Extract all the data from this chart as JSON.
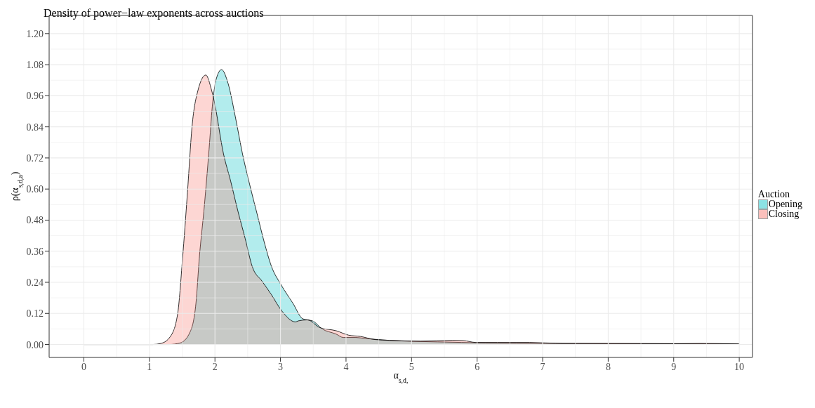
{
  "chart_data": {
    "type": "area",
    "title": "Density of power−law exponents across auctions",
    "xlabel": "α$_{s,d,}$",
    "ylabel": "ρ(α$_{s,d,a}$)",
    "legend_title": "Auction",
    "legend": "right",
    "grid": true,
    "xlim": [
      -0.53,
      10.2
    ],
    "xticks": [
      0,
      1,
      2,
      3,
      4,
      5,
      6,
      7,
      8,
      9,
      10
    ],
    "ylim": [
      -0.05,
      1.27
    ],
    "yticks": [
      {
        "value": 0,
        "label": "0.00"
      },
      {
        "value": 0.12,
        "label": "0.12"
      },
      {
        "value": 0.24,
        "label": "0.24"
      },
      {
        "value": 0.36,
        "label": "0.36"
      },
      {
        "value": 0.48,
        "label": "0.48"
      },
      {
        "value": 0.6,
        "label": "0.60"
      },
      {
        "value": 0.72,
        "label": "0.72"
      },
      {
        "value": 0.84,
        "label": "0.84"
      },
      {
        "value": 0.96,
        "label": "0.96"
      },
      {
        "value": 1.08,
        "label": "1.08"
      },
      {
        "value": 1.2,
        "label": "1.20"
      }
    ],
    "series": [
      {
        "name": "Opening",
        "color": "#00bfc4",
        "x": [
          0,
          1.3,
          1.47,
          1.62,
          1.71,
          1.76,
          1.84,
          1.91,
          1.96,
          2.02,
          2.1,
          2.2,
          2.31,
          2.42,
          2.53,
          2.64,
          2.75,
          2.86,
          3.01,
          3.19,
          3.34,
          3.41,
          3.49,
          3.63,
          3.85,
          3.96,
          4.15,
          4.3,
          4.66,
          5.03,
          5.4,
          5.76,
          6.13,
          6.6,
          7.2,
          8,
          9,
          10
        ],
        "values": [
          0,
          0,
          0.006,
          0.048,
          0.159,
          0.33,
          0.54,
          0.753,
          0.92,
          1.025,
          1.061,
          1.008,
          0.88,
          0.736,
          0.617,
          0.507,
          0.397,
          0.303,
          0.23,
          0.159,
          0.099,
          0.095,
          0.091,
          0.061,
          0.04,
          0.027,
          0.027,
          0.023,
          0.016,
          0.012,
          0.01,
          0.008,
          0.006,
          0.005,
          0.004,
          0.003,
          0.003,
          0.002
        ]
      },
      {
        "name": "Closing",
        "color": "#f8766d",
        "x": [
          0,
          1.05,
          1.175,
          1.32,
          1.43,
          1.505,
          1.58,
          1.65,
          1.74,
          1.86,
          1.95,
          1.98,
          2.13,
          2.24,
          2.35,
          2.46,
          2.57,
          2.72,
          2.86,
          3.01,
          3.23,
          3.27,
          3.41,
          3.6,
          3.85,
          4.04,
          4.22,
          4.44,
          4.66,
          5.14,
          5.62,
          5.79,
          5.98,
          6.31,
          6.8,
          7.3,
          8,
          9,
          9.4,
          10
        ],
        "values": [
          0,
          0,
          0.004,
          0.031,
          0.117,
          0.33,
          0.585,
          0.84,
          0.98,
          1.04,
          0.98,
          0.95,
          0.736,
          0.63,
          0.515,
          0.41,
          0.3,
          0.244,
          0.193,
          0.133,
          0.087,
          0.091,
          0.095,
          0.065,
          0.053,
          0.036,
          0.031,
          0.019,
          0.016,
          0.013,
          0.016,
          0.015,
          0.008,
          0.008,
          0.008,
          0.004,
          0.004,
          0.003,
          0.004,
          0.002
        ]
      }
    ]
  }
}
